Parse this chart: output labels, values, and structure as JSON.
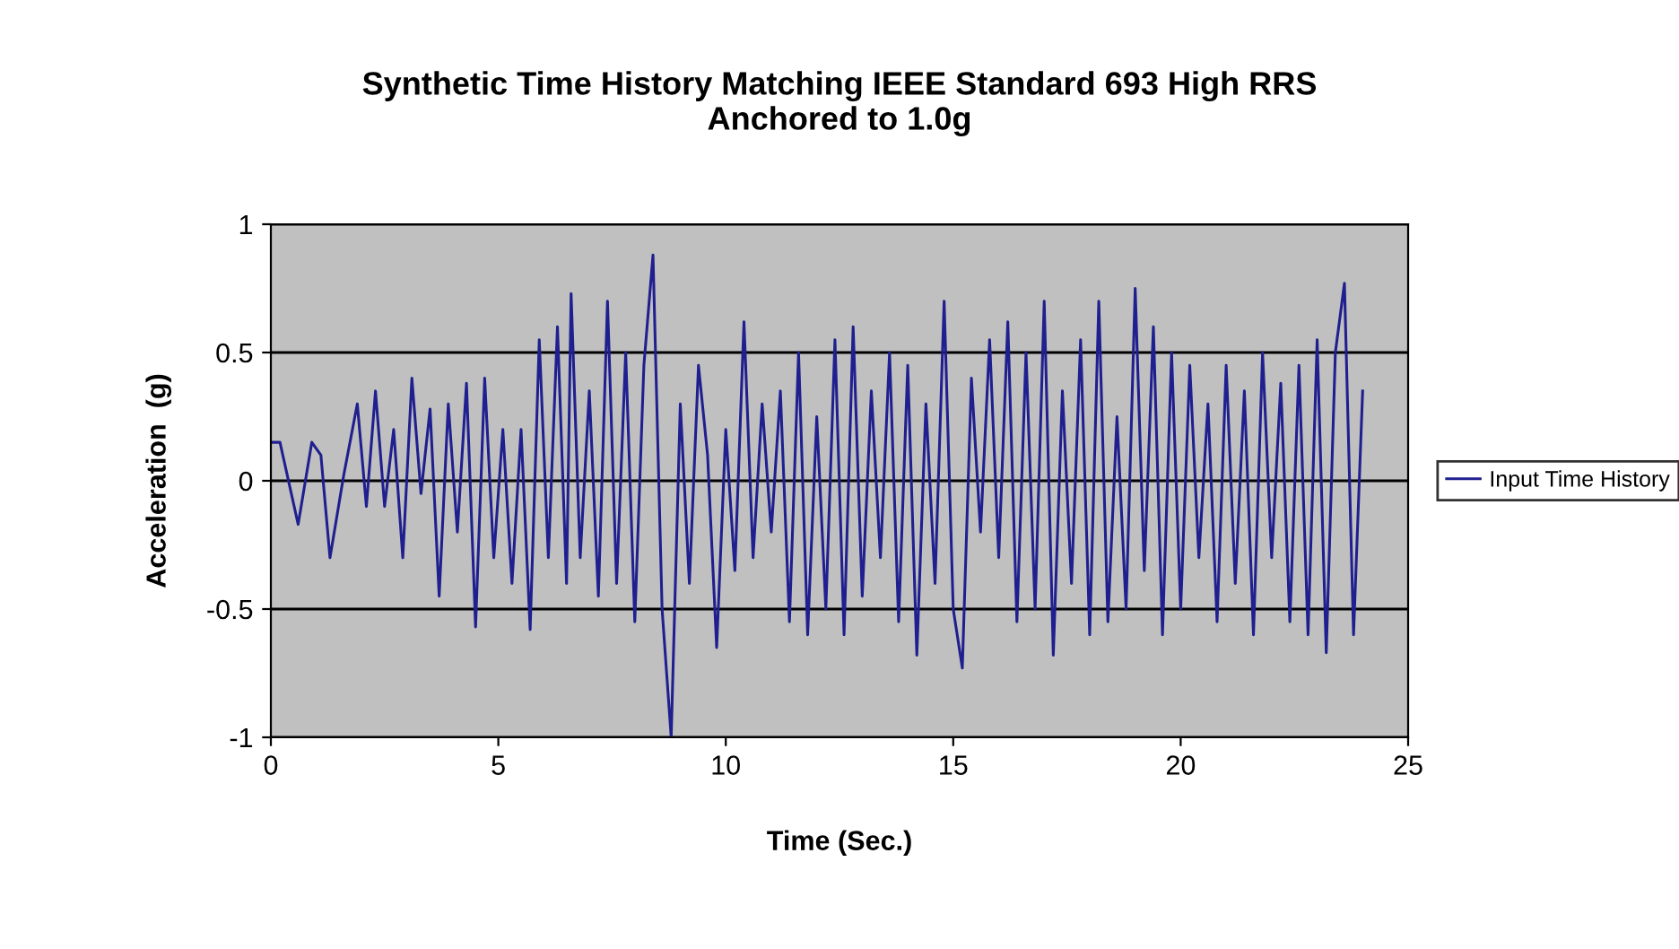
{
  "chart_data": {
    "type": "line",
    "title": "Synthetic Time History Matching IEEE Standard 693 High RRS\nAnchored to 1.0g",
    "xlabel": "Time (Sec.)",
    "ylabel": "Acceleration  (g)",
    "xlim": [
      0,
      25
    ],
    "xticks": [
      0,
      5,
      10,
      15,
      20,
      25
    ],
    "ylim": [
      -1,
      1
    ],
    "yticks": [
      -1,
      -0.5,
      0,
      0.5,
      1
    ],
    "grid": "y",
    "legend": "right",
    "marker": "none",
    "line_style": "solid",
    "series": [
      {
        "name": "Input Time History",
        "color": "#1f1f8f",
        "x": [
          0,
          0.2,
          0.6,
          0.9,
          1.1,
          1.3,
          1.6,
          1.9,
          2.1,
          2.3,
          2.5,
          2.7,
          2.9,
          3.1,
          3.3,
          3.5,
          3.7,
          3.9,
          4.1,
          4.3,
          4.5,
          4.7,
          4.9,
          5.1,
          5.3,
          5.5,
          5.7,
          5.9,
          6.1,
          6.3,
          6.5,
          6.6,
          6.8,
          7.0,
          7.2,
          7.4,
          7.6,
          7.8,
          8.0,
          8.2,
          8.4,
          8.6,
          8.8,
          9.0,
          9.2,
          9.4,
          9.6,
          9.8,
          10.0,
          10.2,
          10.4,
          10.6,
          10.8,
          11.0,
          11.2,
          11.4,
          11.6,
          11.8,
          12.0,
          12.2,
          12.4,
          12.6,
          12.8,
          13.0,
          13.2,
          13.4,
          13.6,
          13.8,
          14.0,
          14.2,
          14.4,
          14.6,
          14.8,
          15.0,
          15.2,
          15.4,
          15.6,
          15.8,
          16.0,
          16.2,
          16.4,
          16.6,
          16.8,
          17.0,
          17.2,
          17.4,
          17.6,
          17.8,
          18.0,
          18.2,
          18.4,
          18.6,
          18.8,
          19.0,
          19.2,
          19.4,
          19.6,
          19.8,
          20.0,
          20.2,
          20.4,
          20.6,
          20.8,
          21.0,
          21.2,
          21.4,
          21.6,
          21.8,
          22.0,
          22.2,
          22.4,
          22.6,
          22.8,
          23.0,
          23.2,
          23.4,
          23.6,
          23.8,
          24.0
        ],
        "values": [
          0.15,
          0.15,
          -0.17,
          0.15,
          0.1,
          -0.3,
          0.02,
          0.3,
          -0.1,
          0.35,
          -0.1,
          0.2,
          -0.3,
          0.4,
          -0.05,
          0.28,
          -0.45,
          0.3,
          -0.2,
          0.38,
          -0.57,
          0.4,
          -0.3,
          0.2,
          -0.4,
          0.2,
          -0.58,
          0.55,
          -0.3,
          0.6,
          -0.4,
          0.73,
          -0.3,
          0.35,
          -0.45,
          0.7,
          -0.4,
          0.5,
          -0.55,
          0.45,
          0.88,
          -0.5,
          -1.0,
          0.3,
          -0.4,
          0.45,
          0.1,
          -0.65,
          0.2,
          -0.35,
          0.62,
          -0.3,
          0.3,
          -0.2,
          0.35,
          -0.55,
          0.5,
          -0.6,
          0.25,
          -0.5,
          0.55,
          -0.6,
          0.6,
          -0.45,
          0.35,
          -0.3,
          0.5,
          -0.55,
          0.45,
          -0.68,
          0.3,
          -0.4,
          0.7,
          -0.5,
          -0.73,
          0.4,
          -0.2,
          0.55,
          -0.3,
          0.62,
          -0.55,
          0.5,
          -0.5,
          0.7,
          -0.68,
          0.35,
          -0.4,
          0.55,
          -0.6,
          0.7,
          -0.55,
          0.25,
          -0.5,
          0.75,
          -0.35,
          0.6,
          -0.6,
          0.5,
          -0.5,
          0.45,
          -0.3,
          0.3,
          -0.55,
          0.45,
          -0.4,
          0.35,
          -0.6,
          0.5,
          -0.3,
          0.38,
          -0.55,
          0.45,
          -0.6,
          0.55,
          -0.67,
          0.5,
          0.77,
          -0.6,
          0.35
        ]
      }
    ]
  }
}
